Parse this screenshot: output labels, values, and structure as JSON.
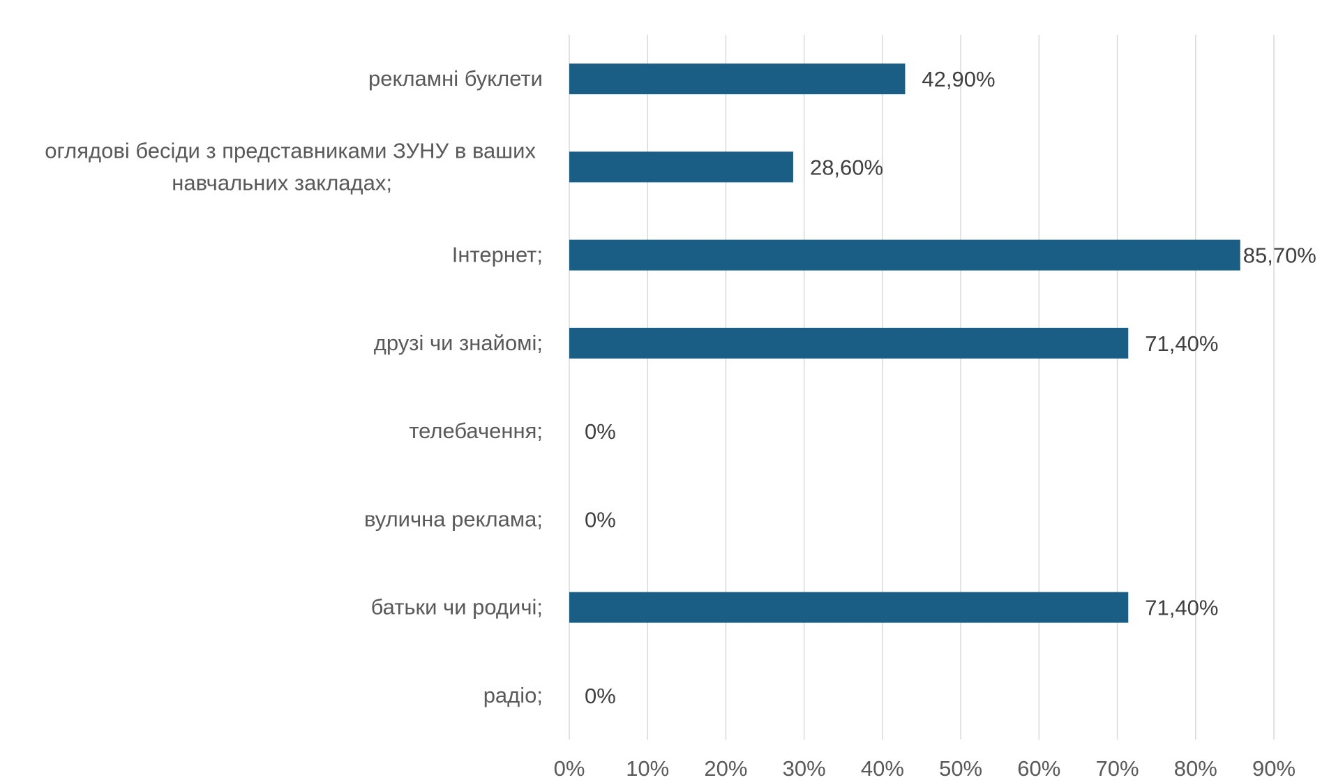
{
  "chart_data": {
    "type": "bar",
    "orientation": "horizontal",
    "categories": [
      "рекламні буклети",
      "оглядові бесіди з представниками ЗУНУ в ваших навчальних закладах;",
      "Інтернет;",
      "друзі чи знайомі;",
      "телебачення;",
      "вулична реклама;",
      "батьки чи родичі;",
      "радіо;"
    ],
    "category_lines": [
      [
        "рекламні буклети"
      ],
      [
        "оглядові бесіди з представниками ЗУНУ в ваших",
        "навчальних закладах;"
      ],
      [
        "Інтернет;"
      ],
      [
        "друзі чи знайомі;"
      ],
      [
        "телебачення;"
      ],
      [
        "вулична реклама;"
      ],
      [
        "батьки чи родичі;"
      ],
      [
        "радіо;"
      ]
    ],
    "values": [
      42.9,
      28.6,
      85.7,
      71.4,
      0,
      0,
      71.4,
      0
    ],
    "data_labels": [
      "42,90%",
      "28,60%",
      "85,70%",
      "71,40%",
      "0%",
      "0%",
      "71,40%",
      "0%"
    ],
    "x_ticks": [
      0,
      10,
      20,
      30,
      40,
      50,
      60,
      70,
      80,
      90
    ],
    "x_tick_labels": [
      "0%",
      "10%",
      "20%",
      "30%",
      "40%",
      "50%",
      "60%",
      "70%",
      "80%",
      "90%"
    ],
    "xlim": [
      0,
      90
    ],
    "grid": true,
    "title": "",
    "xlabel": "",
    "ylabel": "",
    "bar_color": "#1a5e85"
  }
}
